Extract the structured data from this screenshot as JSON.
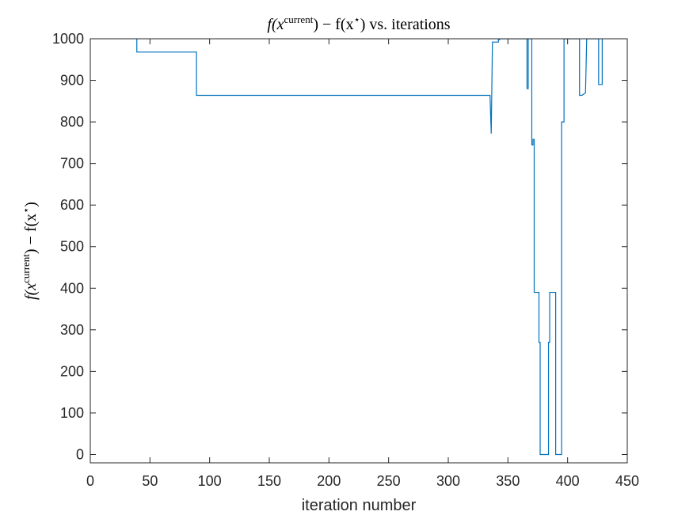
{
  "chart_data": {
    "type": "line",
    "title": {
      "f_open": "f(x",
      "sup_current": "current",
      "mid": ") − f(x",
      "sup_star": "⋆",
      "close": ") vs. iterations"
    },
    "xlabel": "iteration number",
    "ylabel": {
      "f_open": "f(x",
      "sup_current": "current",
      "mid": ") − f(x",
      "sup_star": "⋆",
      "close": ")"
    },
    "xlim": [
      0,
      450
    ],
    "ylim": [
      -20,
      1000
    ],
    "xticks": [
      0,
      50,
      100,
      150,
      200,
      250,
      300,
      350,
      400,
      450
    ],
    "yticks": [
      0,
      100,
      200,
      300,
      400,
      500,
      600,
      700,
      800,
      900,
      1000
    ],
    "grid": false,
    "line_color": "#0072BD",
    "series": [
      {
        "x": [
          39,
          39,
          89,
          89,
          335,
          336,
          337,
          337,
          342,
          342,
          343,
          343,
          366,
          366,
          367,
          367,
          370,
          370,
          371,
          371,
          372,
          372,
          373,
          373,
          376,
          376,
          377,
          377,
          378,
          378,
          379,
          379,
          384,
          384,
          385,
          385,
          389,
          389,
          390,
          390,
          394,
          394,
          395,
          395,
          397,
          397,
          401,
          410,
          410,
          412,
          412,
          415,
          415,
          416,
          416,
          426,
          426,
          429,
          429
        ],
        "y": [
          1000,
          968,
          968,
          864,
          864,
          772,
          992,
          992,
          992,
          998,
          998,
          1000,
          1000,
          880,
          880,
          1000,
          1000,
          745,
          745,
          758,
          758,
          390,
          390,
          390,
          390,
          270,
          270,
          0,
          0,
          0,
          0,
          0,
          0,
          270,
          270,
          390,
          390,
          390,
          390,
          0,
          0,
          0,
          0,
          800,
          800,
          1000,
          1000,
          1000,
          864,
          864,
          864,
          870,
          870,
          1000,
          1000,
          1000,
          890,
          890,
          1000
        ]
      }
    ]
  }
}
